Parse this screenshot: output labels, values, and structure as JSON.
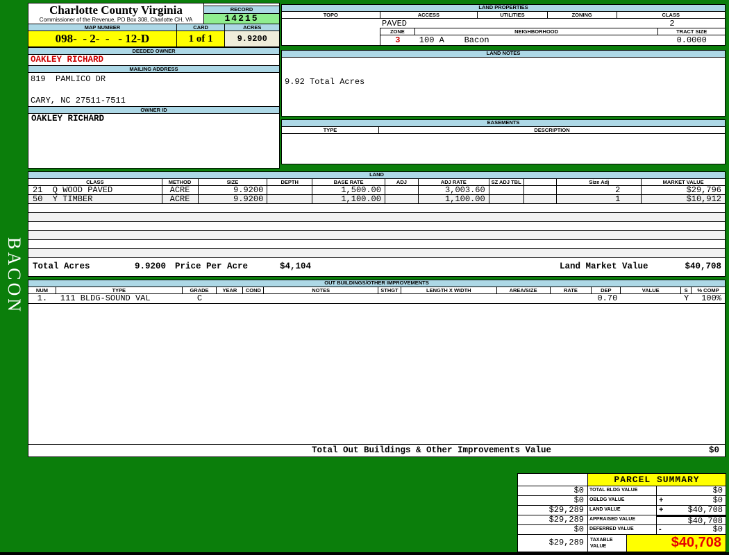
{
  "colors": {
    "page_green": "#0B7E0B",
    "header_blue": "#ADD8E6",
    "record_green": "#90EE90",
    "highlight_yellow": "#FFFF00",
    "acres_beige": "#EFEDDA",
    "owner_red": "#CC0000",
    "taxable_red": "#E60000"
  },
  "sidebar": {
    "district": "BACON"
  },
  "header": {
    "county": "Charlotte County Virginia",
    "commissioner": "Commissioner of the Revenue, PO Box 308, Charlotte CH, VA",
    "record_label": "RECORD",
    "record": "14215",
    "map_number_label": "MAP NUMBER",
    "map_number": "098-  - 2-  -   - 12-D",
    "card_label": "CARD",
    "card": "1 of 1",
    "acres_label": "ACRES",
    "acres": "9.9200",
    "deeded_owner_label": "DEEDED OWNER",
    "deeded_owner": "OAKLEY RICHARD",
    "mailing_label": "MAILING ADDRESS",
    "address_line1": "819  PAMLICO DR",
    "address_line2": "CARY, NC 27511-7511",
    "owner_id_label": "OWNER ID",
    "owner_id": "OAKLEY RICHARD"
  },
  "land_properties": {
    "title": "LAND PROPERTIES",
    "headers": [
      "TOPO",
      "ACCESS",
      "UTILITIES",
      "ZONING",
      "CLASS"
    ],
    "access": "PAVED",
    "class": "2",
    "zone_label": "ZONE",
    "zone": "3",
    "neighborhood_label": "NEIGHBORHOOD",
    "neighborhood": "100 A    Bacon",
    "tract_label": "TRACT SIZE",
    "tract_size": "0.0000"
  },
  "land_notes": {
    "title": "LAND NOTES",
    "note": "9.92 Total Acres"
  },
  "easements": {
    "title": "EASEMENTS",
    "type_label": "TYPE",
    "description_label": "DESCRIPTION"
  },
  "land": {
    "title": "LAND",
    "headers": [
      "CLASS",
      "METHOD",
      "SIZE",
      "DEPTH",
      "BASE RATE",
      "ADJ",
      "ADJ RATE",
      "SZ ADJ TBL",
      "",
      "Size Adj",
      "MARKET VALUE"
    ],
    "rows": [
      {
        "class": "21  Q WOOD PAVED",
        "method": "ACRE",
        "size": "9.9200",
        "depth": "",
        "base_rate": "1,500.00",
        "adj": "",
        "adj_rate": "3,003.60",
        "sz_adj_tbl": "",
        "blank": "",
        "size_adj": "2",
        "market_value": "$29,796"
      },
      {
        "class": "50  Y TIMBER",
        "method": "ACRE",
        "size": "9.9200",
        "depth": "",
        "base_rate": "1,100.00",
        "adj": "",
        "adj_rate": "1,100.00",
        "sz_adj_tbl": "",
        "blank": "",
        "size_adj": "1",
        "market_value": "$10,912"
      }
    ],
    "total_acres_label": "Total Acres",
    "total_acres": "9.9200",
    "price_label": "Price Per Acre",
    "price_per_acre": "$4,104",
    "market_label": "Land Market Value",
    "land_market_value": "$40,708"
  },
  "out_buildings": {
    "title": "OUT BUILDINGS/OTHER IMPROVEMENTS",
    "headers": [
      "NUM",
      "TYPE",
      "GRADE",
      "YEAR",
      "COND",
      "NOTES",
      "STHGT",
      "LENGTH X WIDTH",
      "AREA/SIZE",
      "RATE",
      "DEP",
      "VALUE",
      "S",
      "% COMP"
    ],
    "rows": [
      {
        "num": "1.",
        "type": "111 BLDG-SOUND VAL",
        "grade": "C",
        "year": "",
        "cond": "",
        "notes": "",
        "sthgt": "",
        "length_width": "",
        "area_size": "",
        "rate": "",
        "dep": "0.70",
        "value": "",
        "s": "Y",
        "pct_comp": "100%"
      }
    ],
    "total_label": "Total Out Buildings & Other Improvements Value",
    "total_value": "$0"
  },
  "parcel_summary": {
    "title": "PARCEL SUMMARY",
    "rows": [
      {
        "left": "$0",
        "label": "TOTAL BLDG VALUE",
        "op": "",
        "value": "$0"
      },
      {
        "left": "$0",
        "label": "OBLDG VALUE",
        "op": "+",
        "value": "$0"
      },
      {
        "left": "$29,289",
        "label": "LAND VALUE",
        "op": "+",
        "value": "$40,708"
      },
      {
        "left": "$29,289",
        "label": "APPRAISED VALUE",
        "op": "",
        "value": "$40,708"
      },
      {
        "left": "$0",
        "label": "DEFERRED VALUE",
        "op": "-",
        "value": "$0"
      }
    ],
    "taxable_left": "$29,289",
    "taxable_label": "TAXABLE VALUE",
    "taxable_value": "$40,708"
  }
}
